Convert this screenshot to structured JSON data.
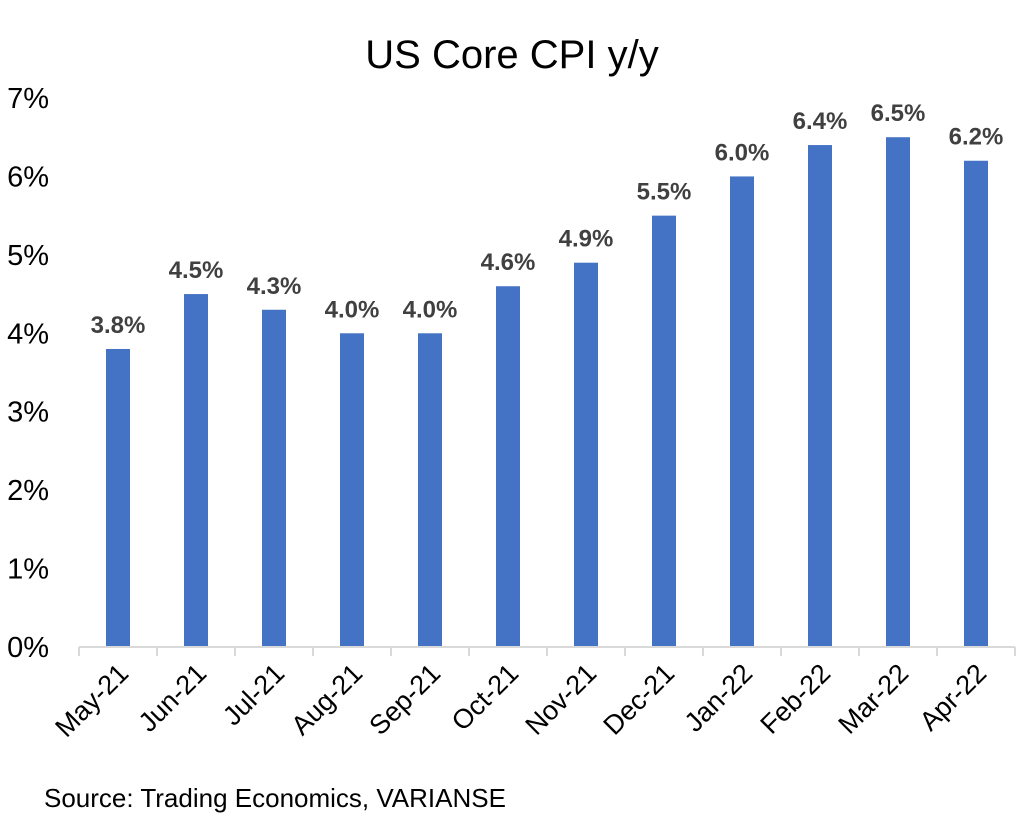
{
  "chart_data": {
    "type": "bar",
    "title": "US Core CPI y/y",
    "xlabel": "",
    "ylabel": "",
    "categories": [
      "May-21",
      "Jun-21",
      "Jul-21",
      "Aug-21",
      "Sep-21",
      "Oct-21",
      "Nov-21",
      "Dec-21",
      "Jan-22",
      "Feb-22",
      "Mar-22",
      "Apr-22"
    ],
    "values": [
      3.8,
      4.5,
      4.3,
      4.0,
      4.0,
      4.6,
      4.9,
      5.5,
      6.0,
      6.4,
      6.5,
      6.2
    ],
    "data_labels": [
      "3.8%",
      "4.5%",
      "4.3%",
      "4.0%",
      "4.0%",
      "4.6%",
      "4.9%",
      "5.5%",
      "6.0%",
      "6.4%",
      "6.5%",
      "6.2%"
    ],
    "ylim": [
      0,
      7
    ],
    "yticks": [
      "0%",
      "1%",
      "2%",
      "3%",
      "4%",
      "5%",
      "6%",
      "7%"
    ],
    "grid": false,
    "legend": "none",
    "bar_color": "#4472C4",
    "source": "Source: Trading Economics, VARIANSE"
  }
}
